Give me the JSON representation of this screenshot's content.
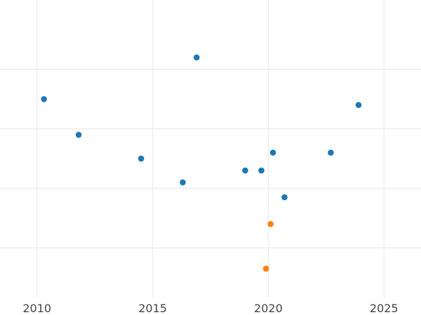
{
  "chart_data": {
    "type": "scatter",
    "title": "",
    "xlabel": "",
    "ylabel": "",
    "xlim": [
      2008.4,
      2026.6
    ],
    "ylim": [
      0,
      10
    ],
    "x_ticks": [
      2010,
      2015,
      2020,
      2025
    ],
    "x_tick_labels": [
      "2010",
      "2015",
      "2020",
      "2025"
    ],
    "y_gridlines": [
      1.67,
      3.67,
      5.67,
      7.67
    ],
    "grid": true,
    "legend": "none",
    "series": [
      {
        "color": "#1f77b4",
        "points": [
          {
            "x": 2010.3,
            "y": 6.67
          },
          {
            "x": 2011.8,
            "y": 5.47
          },
          {
            "x": 2014.5,
            "y": 4.67
          },
          {
            "x": 2016.3,
            "y": 3.87
          },
          {
            "x": 2016.9,
            "y": 8.07
          },
          {
            "x": 2019.0,
            "y": 4.27
          },
          {
            "x": 2019.7,
            "y": 4.27
          },
          {
            "x": 2020.2,
            "y": 4.87
          },
          {
            "x": 2020.7,
            "y": 3.37
          },
          {
            "x": 2022.7,
            "y": 4.87
          },
          {
            "x": 2023.9,
            "y": 6.47
          }
        ]
      },
      {
        "color": "#ff7f0e",
        "points": [
          {
            "x": 2020.1,
            "y": 2.47
          },
          {
            "x": 2019.9,
            "y": 0.97
          }
        ]
      }
    ]
  }
}
